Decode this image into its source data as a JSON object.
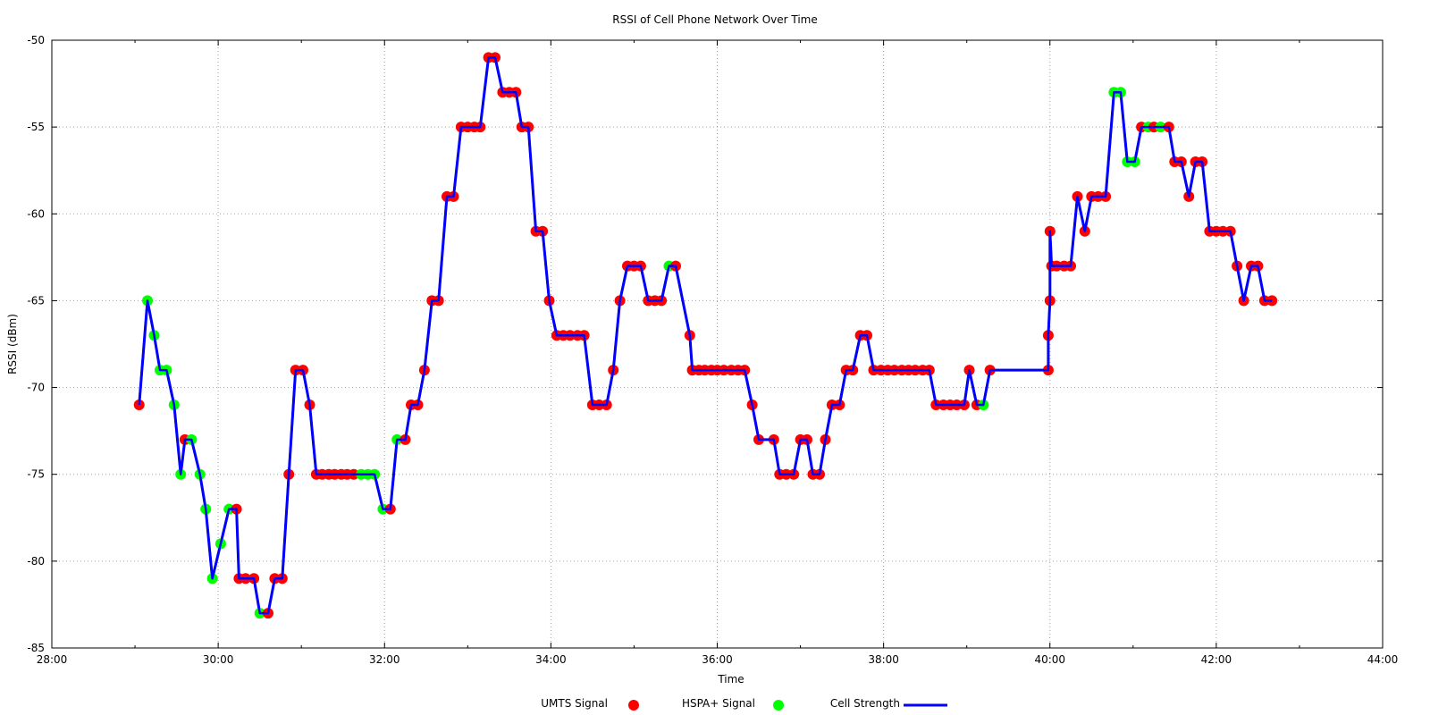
{
  "chart_data": {
    "type": "line",
    "title": "RSSI of Cell Phone Network Over Time",
    "xlabel": "Time",
    "ylabel": "RSSI (dBm)",
    "xlim": [
      28,
      44
    ],
    "ylim": [
      -85,
      -50
    ],
    "x_ticks": [
      "28:00",
      "30:00",
      "32:00",
      "34:00",
      "36:00",
      "38:00",
      "40:00",
      "42:00",
      "44:00"
    ],
    "y_ticks": [
      "-50",
      "-55",
      "-60",
      "-65",
      "-70",
      "-75",
      "-80",
      "-85"
    ],
    "grid": true,
    "legend_position": "bottom",
    "legend": {
      "umts": "UMTS  Signal",
      "hspa": "HSPA+ Signal",
      "line": "Cell Strength"
    },
    "colors": {
      "umts": "#ff0000",
      "hspa": "#00ff00",
      "line": "#0000ff"
    },
    "series": [
      {
        "name": "Cell Strength",
        "points": [
          {
            "x": 29.05,
            "y": -71,
            "t": "u"
          },
          {
            "x": 29.15,
            "y": -65,
            "t": "h"
          },
          {
            "x": 29.23,
            "y": -67,
            "t": "h"
          },
          {
            "x": 29.3,
            "y": -69,
            "t": "h"
          },
          {
            "x": 29.38,
            "y": -69,
            "t": "h"
          },
          {
            "x": 29.47,
            "y": -71,
            "t": "h"
          },
          {
            "x": 29.55,
            "y": -75,
            "t": "h"
          },
          {
            "x": 29.6,
            "y": -73,
            "t": "u"
          },
          {
            "x": 29.68,
            "y": -73,
            "t": "h"
          },
          {
            "x": 29.78,
            "y": -75,
            "t": "h"
          },
          {
            "x": 29.85,
            "y": -77,
            "t": "h"
          },
          {
            "x": 29.93,
            "y": -81,
            "t": "h"
          },
          {
            "x": 30.03,
            "y": -79,
            "t": "h"
          },
          {
            "x": 30.13,
            "y": -77,
            "t": "h"
          },
          {
            "x": 30.22,
            "y": -77,
            "t": "u"
          },
          {
            "x": 30.25,
            "y": -81,
            "t": "u"
          },
          {
            "x": 30.33,
            "y": -81,
            "t": "u"
          },
          {
            "x": 30.43,
            "y": -81,
            "t": "u"
          },
          {
            "x": 30.5,
            "y": -83,
            "t": "h"
          },
          {
            "x": 30.6,
            "y": -83,
            "t": "u"
          },
          {
            "x": 30.68,
            "y": -81,
            "t": "u"
          },
          {
            "x": 30.77,
            "y": -81,
            "t": "u"
          },
          {
            "x": 30.85,
            "y": -75,
            "t": "u"
          },
          {
            "x": 30.93,
            "y": -69,
            "t": "u"
          },
          {
            "x": 31.02,
            "y": -69,
            "t": "u"
          },
          {
            "x": 31.1,
            "y": -71,
            "t": "u"
          },
          {
            "x": 31.18,
            "y": -75,
            "t": "u"
          },
          {
            "x": 31.25,
            "y": -75,
            "t": "u"
          },
          {
            "x": 31.33,
            "y": -75,
            "t": "u"
          },
          {
            "x": 31.4,
            "y": -75,
            "t": "u"
          },
          {
            "x": 31.48,
            "y": -75,
            "t": "u"
          },
          {
            "x": 31.55,
            "y": -75,
            "t": "u"
          },
          {
            "x": 31.63,
            "y": -75,
            "t": "u"
          },
          {
            "x": 31.72,
            "y": -75,
            "t": "h"
          },
          {
            "x": 31.8,
            "y": -75,
            "t": "h"
          },
          {
            "x": 31.88,
            "y": -75,
            "t": "h"
          },
          {
            "x": 31.98,
            "y": -77,
            "t": "h"
          },
          {
            "x": 32.07,
            "y": -77,
            "t": "u"
          },
          {
            "x": 32.15,
            "y": -73,
            "t": "h"
          },
          {
            "x": 32.25,
            "y": -73,
            "t": "u"
          },
          {
            "x": 32.32,
            "y": -71,
            "t": "u"
          },
          {
            "x": 32.4,
            "y": -71,
            "t": "u"
          },
          {
            "x": 32.48,
            "y": -69,
            "t": "u"
          },
          {
            "x": 32.57,
            "y": -65,
            "t": "u"
          },
          {
            "x": 32.65,
            "y": -65,
            "t": "u"
          },
          {
            "x": 32.75,
            "y": -59,
            "t": "u"
          },
          {
            "x": 32.83,
            "y": -59,
            "t": "u"
          },
          {
            "x": 32.92,
            "y": -55,
            "t": "u"
          },
          {
            "x": 33.0,
            "y": -55,
            "t": "u"
          },
          {
            "x": 33.08,
            "y": -55,
            "t": "u"
          },
          {
            "x": 33.15,
            "y": -55,
            "t": "u"
          },
          {
            "x": 33.25,
            "y": -51,
            "t": "u"
          },
          {
            "x": 33.33,
            "y": -51,
            "t": "u"
          },
          {
            "x": 33.42,
            "y": -53,
            "t": "u"
          },
          {
            "x": 33.5,
            "y": -53,
            "t": "u"
          },
          {
            "x": 33.58,
            "y": -53,
            "t": "u"
          },
          {
            "x": 33.65,
            "y": -55,
            "t": "u"
          },
          {
            "x": 33.73,
            "y": -55,
            "t": "u"
          },
          {
            "x": 33.82,
            "y": -61,
            "t": "u"
          },
          {
            "x": 33.9,
            "y": -61,
            "t": "u"
          },
          {
            "x": 33.98,
            "y": -65,
            "t": "u"
          },
          {
            "x": 34.07,
            "y": -67,
            "t": "u"
          },
          {
            "x": 34.15,
            "y": -67,
            "t": "u"
          },
          {
            "x": 34.23,
            "y": -67,
            "t": "u"
          },
          {
            "x": 34.32,
            "y": -67,
            "t": "u"
          },
          {
            "x": 34.4,
            "y": -67,
            "t": "u"
          },
          {
            "x": 34.5,
            "y": -71,
            "t": "u"
          },
          {
            "x": 34.58,
            "y": -71,
            "t": "u"
          },
          {
            "x": 34.67,
            "y": -71,
            "t": "u"
          },
          {
            "x": 34.75,
            "y": -69,
            "t": "u"
          },
          {
            "x": 34.83,
            "y": -65,
            "t": "u"
          },
          {
            "x": 34.92,
            "y": -63,
            "t": "u"
          },
          {
            "x": 35.0,
            "y": -63,
            "t": "u"
          },
          {
            "x": 35.08,
            "y": -63,
            "t": "u"
          },
          {
            "x": 35.17,
            "y": -65,
            "t": "u"
          },
          {
            "x": 35.25,
            "y": -65,
            "t": "u"
          },
          {
            "x": 35.33,
            "y": -65,
            "t": "u"
          },
          {
            "x": 35.42,
            "y": -63,
            "t": "h"
          },
          {
            "x": 35.5,
            "y": -63,
            "t": "u"
          },
          {
            "x": 35.67,
            "y": -67,
            "t": "u"
          },
          {
            "x": 35.7,
            "y": -69,
            "t": "u"
          },
          {
            "x": 35.78,
            "y": -69,
            "t": "u"
          },
          {
            "x": 35.85,
            "y": -69,
            "t": "u"
          },
          {
            "x": 35.93,
            "y": -69,
            "t": "u"
          },
          {
            "x": 36.0,
            "y": -69,
            "t": "u"
          },
          {
            "x": 36.08,
            "y": -69,
            "t": "u"
          },
          {
            "x": 36.17,
            "y": -69,
            "t": "u"
          },
          {
            "x": 36.25,
            "y": -69,
            "t": "u"
          },
          {
            "x": 36.33,
            "y": -69,
            "t": "u"
          },
          {
            "x": 36.42,
            "y": -71,
            "t": "u"
          },
          {
            "x": 36.5,
            "y": -73,
            "t": "u"
          },
          {
            "x": 36.68,
            "y": -73,
            "t": "u"
          },
          {
            "x": 36.75,
            "y": -75,
            "t": "u"
          },
          {
            "x": 36.83,
            "y": -75,
            "t": "u"
          },
          {
            "x": 36.92,
            "y": -75,
            "t": "u"
          },
          {
            "x": 37.0,
            "y": -73,
            "t": "u"
          },
          {
            "x": 37.08,
            "y": -73,
            "t": "u"
          },
          {
            "x": 37.15,
            "y": -75,
            "t": "u"
          },
          {
            "x": 37.23,
            "y": -75,
            "t": "u"
          },
          {
            "x": 37.3,
            "y": -73,
            "t": "u"
          },
          {
            "x": 37.38,
            "y": -71,
            "t": "u"
          },
          {
            "x": 37.47,
            "y": -71,
            "t": "u"
          },
          {
            "x": 37.55,
            "y": -69,
            "t": "u"
          },
          {
            "x": 37.63,
            "y": -69,
            "t": "u"
          },
          {
            "x": 37.72,
            "y": -67,
            "t": "u"
          },
          {
            "x": 37.8,
            "y": -67,
            "t": "u"
          },
          {
            "x": 37.88,
            "y": -69,
            "t": "u"
          },
          {
            "x": 37.97,
            "y": -69,
            "t": "u"
          },
          {
            "x": 38.05,
            "y": -69,
            "t": "u"
          },
          {
            "x": 38.13,
            "y": -69,
            "t": "u"
          },
          {
            "x": 38.22,
            "y": -69,
            "t": "u"
          },
          {
            "x": 38.3,
            "y": -69,
            "t": "u"
          },
          {
            "x": 38.38,
            "y": -69,
            "t": "u"
          },
          {
            "x": 38.47,
            "y": -69,
            "t": "u"
          },
          {
            "x": 38.55,
            "y": -69,
            "t": "u"
          },
          {
            "x": 38.63,
            "y": -71,
            "t": "u"
          },
          {
            "x": 38.72,
            "y": -71,
            "t": "u"
          },
          {
            "x": 38.8,
            "y": -71,
            "t": "u"
          },
          {
            "x": 38.88,
            "y": -71,
            "t": "u"
          },
          {
            "x": 38.97,
            "y": -71,
            "t": "u"
          },
          {
            "x": 39.03,
            "y": -69,
            "t": "u"
          },
          {
            "x": 39.12,
            "y": -71,
            "t": "u"
          },
          {
            "x": 39.2,
            "y": -71,
            "t": "h"
          },
          {
            "x": 39.28,
            "y": -69,
            "t": "u"
          },
          {
            "x": 39.98,
            "y": -69,
            "t": "u"
          },
          {
            "x": 39.98,
            "y": -67,
            "t": "u"
          },
          {
            "x": 40.0,
            "y": -65,
            "t": "u"
          },
          {
            "x": 40.0,
            "y": -61,
            "t": "u"
          },
          {
            "x": 40.02,
            "y": -63,
            "t": "u"
          },
          {
            "x": 40.08,
            "y": -63,
            "t": "u"
          },
          {
            "x": 40.17,
            "y": -63,
            "t": "u"
          },
          {
            "x": 40.25,
            "y": -63,
            "t": "u"
          },
          {
            "x": 40.33,
            "y": -59,
            "t": "u"
          },
          {
            "x": 40.42,
            "y": -61,
            "t": "u"
          },
          {
            "x": 40.5,
            "y": -59,
            "t": "u"
          },
          {
            "x": 40.58,
            "y": -59,
            "t": "u"
          },
          {
            "x": 40.67,
            "y": -59,
            "t": "u"
          },
          {
            "x": 40.77,
            "y": -53,
            "t": "h"
          },
          {
            "x": 40.85,
            "y": -53,
            "t": "h"
          },
          {
            "x": 40.93,
            "y": -57,
            "t": "h"
          },
          {
            "x": 41.02,
            "y": -57,
            "t": "h"
          },
          {
            "x": 41.1,
            "y": -55,
            "t": "u"
          },
          {
            "x": 41.18,
            "y": -55,
            "t": "h"
          },
          {
            "x": 41.25,
            "y": -55,
            "t": "u"
          },
          {
            "x": 41.33,
            "y": -55,
            "t": "h"
          },
          {
            "x": 41.43,
            "y": -55,
            "t": "u"
          },
          {
            "x": 41.5,
            "y": -57,
            "t": "u"
          },
          {
            "x": 41.58,
            "y": -57,
            "t": "u"
          },
          {
            "x": 41.67,
            "y": -59,
            "t": "u"
          },
          {
            "x": 41.75,
            "y": -57,
            "t": "u"
          },
          {
            "x": 41.83,
            "y": -57,
            "t": "u"
          },
          {
            "x": 41.92,
            "y": -61,
            "t": "u"
          },
          {
            "x": 42.0,
            "y": -61,
            "t": "u"
          },
          {
            "x": 42.08,
            "y": -61,
            "t": "u"
          },
          {
            "x": 42.17,
            "y": -61,
            "t": "u"
          },
          {
            "x": 42.25,
            "y": -63,
            "t": "u"
          },
          {
            "x": 42.33,
            "y": -65,
            "t": "u"
          },
          {
            "x": 42.42,
            "y": -63,
            "t": "u"
          },
          {
            "x": 42.5,
            "y": -63,
            "t": "u"
          },
          {
            "x": 42.58,
            "y": -65,
            "t": "u"
          },
          {
            "x": 42.67,
            "y": -65,
            "t": "u"
          }
        ]
      }
    ]
  }
}
